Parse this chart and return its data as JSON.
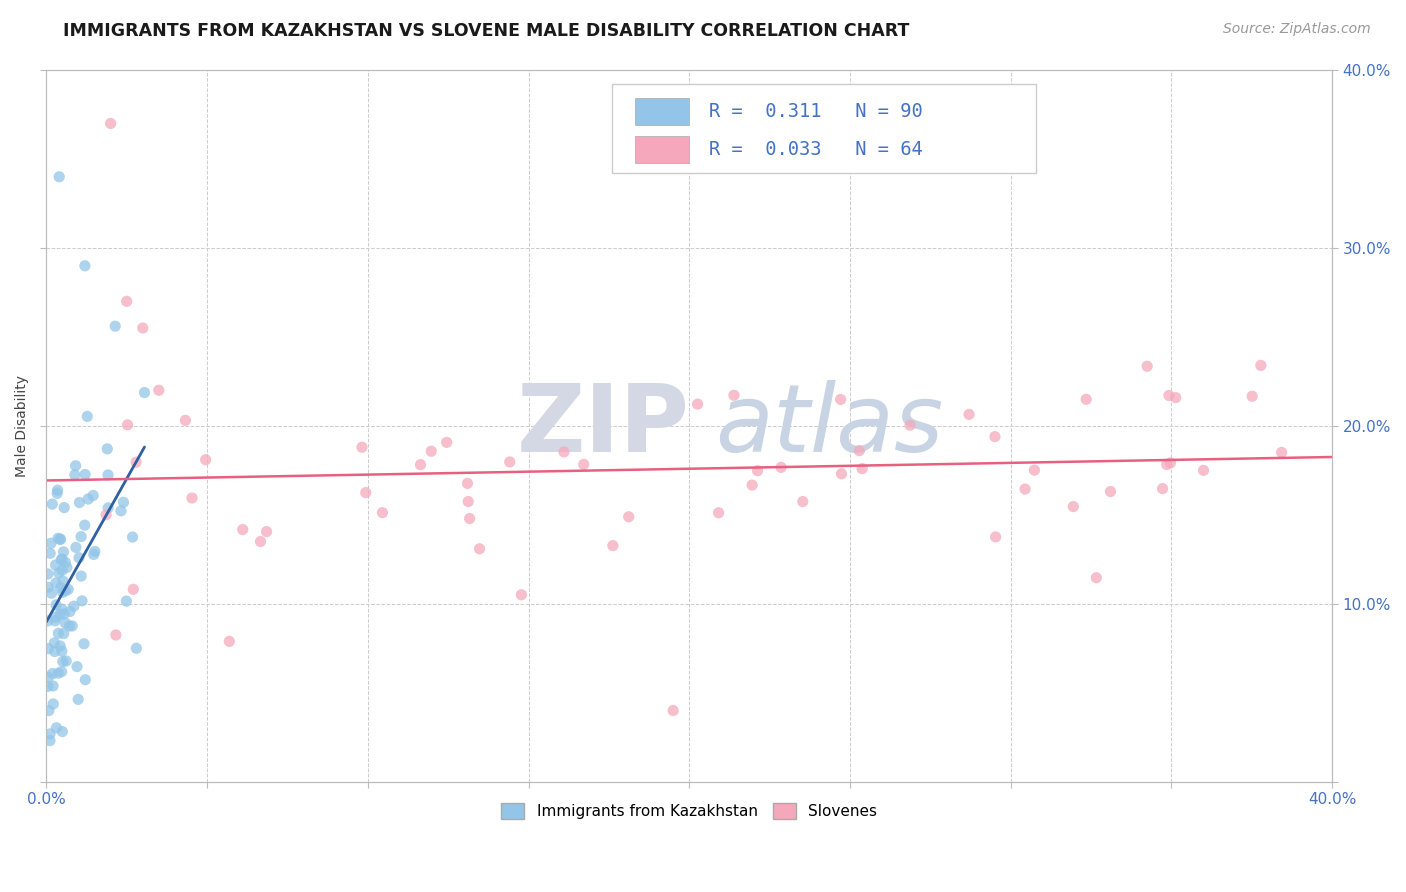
{
  "title": "IMMIGRANTS FROM KAZAKHSTAN VS SLOVENE MALE DISABILITY CORRELATION CHART",
  "source": "Source: ZipAtlas.com",
  "ylabel": "Male Disability",
  "xlim": [
    0.0,
    0.4
  ],
  "ylim": [
    0.0,
    0.4
  ],
  "color_kaz": "#92C5E8",
  "color_slo": "#F5A8BC",
  "trend_color_kaz": "#3060A0",
  "trend_color_slo": "#E86080",
  "r_kaz": 0.311,
  "n_kaz": 90,
  "r_slo": 0.033,
  "n_slo": 64,
  "tick_color": "#4472C4",
  "grid_color": "#CCCCCC",
  "watermark_zip_color": "#D8DCE8",
  "watermark_atlas_color": "#C0CCE0"
}
